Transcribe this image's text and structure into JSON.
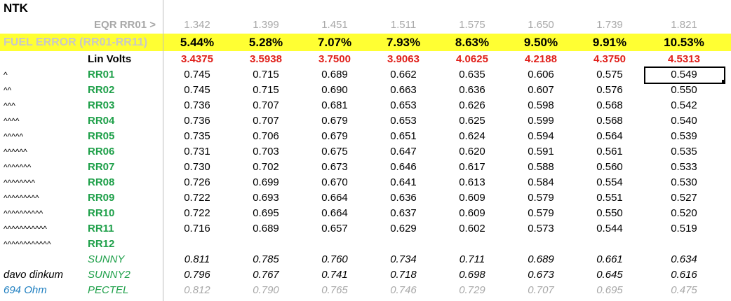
{
  "title": "NTK",
  "eqr": {
    "label": "EQR RR01 >",
    "values": [
      "1.342",
      "1.399",
      "1.451",
      "1.511",
      "1.575",
      "1.650",
      "1.739",
      "1.821"
    ]
  },
  "fuel_error": {
    "label": "FUEL ERROR (RR01-RR11)",
    "values": [
      "5.44%",
      "5.28%",
      "7.07%",
      "7.93%",
      "8.63%",
      "9.50%",
      "9.91%",
      "10.53%"
    ]
  },
  "lin_volts": {
    "label": "Lin Volts",
    "values": [
      "3.4375",
      "3.5938",
      "3.7500",
      "3.9063",
      "4.0625",
      "4.2188",
      "4.3750",
      "4.5313"
    ]
  },
  "rr_rows": [
    {
      "marker": "^",
      "name": "RR01",
      "values": [
        "0.745",
        "0.715",
        "0.689",
        "0.662",
        "0.635",
        "0.606",
        "0.575",
        "0.549"
      ]
    },
    {
      "marker": "^^",
      "name": "RR02",
      "values": [
        "0.745",
        "0.715",
        "0.690",
        "0.663",
        "0.636",
        "0.607",
        "0.576",
        "0.550"
      ]
    },
    {
      "marker": "^^^",
      "name": "RR03",
      "values": [
        "0.736",
        "0.707",
        "0.681",
        "0.653",
        "0.626",
        "0.598",
        "0.568",
        "0.542"
      ]
    },
    {
      "marker": "^^^^",
      "name": "RR04",
      "values": [
        "0.736",
        "0.707",
        "0.679",
        "0.653",
        "0.625",
        "0.599",
        "0.568",
        "0.540"
      ]
    },
    {
      "marker": "^^^^^",
      "name": "RR05",
      "values": [
        "0.735",
        "0.706",
        "0.679",
        "0.651",
        "0.624",
        "0.594",
        "0.564",
        "0.539"
      ]
    },
    {
      "marker": "^^^^^^",
      "name": "RR06",
      "values": [
        "0.731",
        "0.703",
        "0.675",
        "0.647",
        "0.620",
        "0.591",
        "0.561",
        "0.535"
      ]
    },
    {
      "marker": "^^^^^^^",
      "name": "RR07",
      "values": [
        "0.730",
        "0.702",
        "0.673",
        "0.646",
        "0.617",
        "0.588",
        "0.560",
        "0.533"
      ]
    },
    {
      "marker": "^^^^^^^^",
      "name": "RR08",
      "values": [
        "0.726",
        "0.699",
        "0.670",
        "0.641",
        "0.613",
        "0.584",
        "0.554",
        "0.530"
      ]
    },
    {
      "marker": "^^^^^^^^^",
      "name": "RR09",
      "values": [
        "0.722",
        "0.693",
        "0.664",
        "0.636",
        "0.609",
        "0.579",
        "0.551",
        "0.527"
      ]
    },
    {
      "marker": "^^^^^^^^^^",
      "name": "RR10",
      "values": [
        "0.722",
        "0.695",
        "0.664",
        "0.637",
        "0.609",
        "0.579",
        "0.550",
        "0.520"
      ]
    },
    {
      "marker": "^^^^^^^^^^^",
      "name": "RR11",
      "values": [
        "0.716",
        "0.689",
        "0.657",
        "0.629",
        "0.602",
        "0.573",
        "0.544",
        "0.519"
      ]
    },
    {
      "marker": "^^^^^^^^^^^^",
      "name": "RR12",
      "values": []
    }
  ],
  "reference_rows": [
    {
      "name": "SUNNY",
      "values": [
        "0.811",
        "0.785",
        "0.760",
        "0.734",
        "0.711",
        "0.689",
        "0.661",
        "0.634"
      ],
      "value_color": "#000000"
    },
    {
      "note": "davo dinkum",
      "note_color": "#000000",
      "name": "SUNNY2",
      "values": [
        "0.796",
        "0.767",
        "0.741",
        "0.718",
        "0.698",
        "0.673",
        "0.645",
        "0.616"
      ],
      "value_color": "#000000"
    },
    {
      "note": "694 Ohm",
      "note_color": "#1f7fc0",
      "name": "PECTEL",
      "values": [
        "0.812",
        "0.790",
        "0.765",
        "0.746",
        "0.729",
        "0.707",
        "0.695",
        "0.475"
      ],
      "value_color": "#a8a8a8"
    }
  ]
}
